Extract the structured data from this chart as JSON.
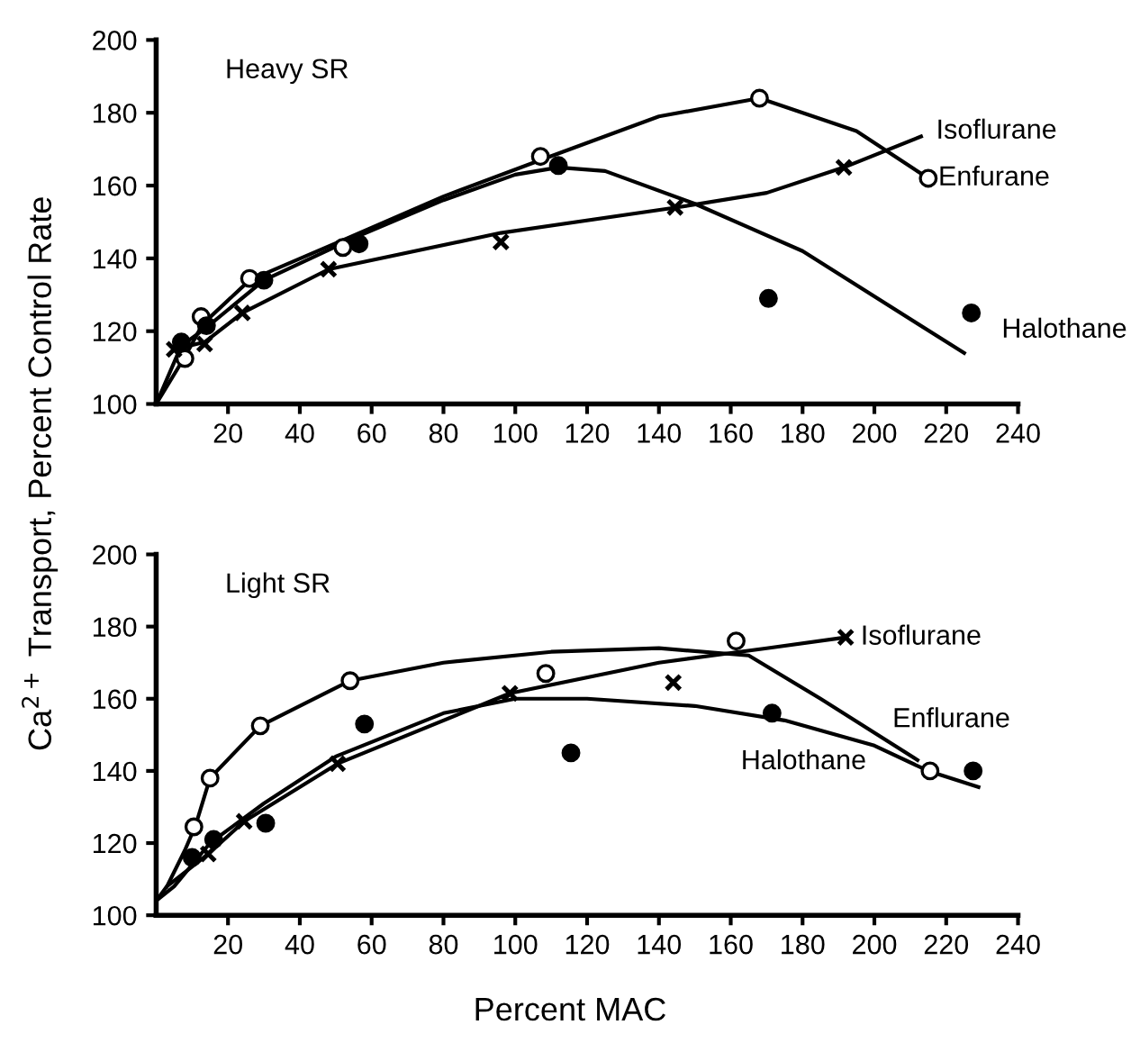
{
  "chart_data": [
    {
      "type": "scatter",
      "title": "Heavy SR",
      "ylabel": "Ca$^{2+}$ Transport, Percent Control Rate",
      "xlim": [
        0,
        240
      ],
      "ylim": [
        100,
        200
      ],
      "xticks": [
        20,
        40,
        60,
        80,
        100,
        120,
        140,
        160,
        180,
        200,
        220,
        240
      ],
      "yticks": [
        100,
        120,
        140,
        160,
        180,
        200
      ],
      "grid": false,
      "legend": false,
      "series": [
        {
          "marker": "circle",
          "color": "#ffffff",
          "x": [
            8,
            12.5,
            26,
            52,
            107,
            168,
            215
          ],
          "values": [
            112.5,
            124,
            134.5,
            143,
            168,
            184,
            162
          ]
        },
        {
          "marker": "circle",
          "color": "#000000",
          "x": [
            7,
            14,
            30,
            56.5,
            112,
            170.5,
            227
          ],
          "values": [
            117,
            121.5,
            134,
            144,
            165.5,
            129,
            125
          ]
        },
        {
          "marker": "cross",
          "color": "#000000",
          "x": [
            5,
            13.5,
            24,
            48,
            96,
            144.5,
            191.5
          ],
          "values": [
            115,
            116.5,
            125,
            137,
            144.5,
            154,
            165
          ]
        },
        {
          "type": "line",
          "name": "Enfurane",
          "color": "#000000",
          "x": [
            0,
            8,
            13,
            26,
            52,
            80,
            107,
            140,
            168,
            195,
            215
          ],
          "values": [
            100,
            113,
            122,
            134,
            145,
            157,
            167,
            179,
            184,
            175,
            162
          ]
        },
        {
          "type": "line",
          "name": "Halothane",
          "color": "#000000",
          "x": [
            0,
            7,
            14,
            30,
            56,
            80,
            100,
            112,
            125,
            150,
            180,
            225
          ],
          "values": [
            100,
            116,
            121,
            134,
            146,
            156,
            163,
            165,
            164,
            155,
            142,
            114
          ]
        },
        {
          "type": "line",
          "name": "Isoflurane",
          "color": "#000000",
          "x": [
            5,
            13.5,
            24,
            48,
            96,
            145,
            170,
            191.5,
            213
          ],
          "values": [
            115,
            117,
            125,
            137,
            147,
            154,
            158,
            165,
            173.5
          ]
        }
      ]
    },
    {
      "type": "scatter",
      "title": "Light SR",
      "xlabel": "Percent MAC",
      "xlim": [
        0,
        240
      ],
      "ylim": [
        100,
        200
      ],
      "xticks": [
        20,
        40,
        60,
        80,
        100,
        120,
        140,
        160,
        180,
        200,
        220,
        240
      ],
      "yticks": [
        100,
        120,
        140,
        160,
        180,
        200
      ],
      "grid": false,
      "legend": false,
      "series": [
        {
          "marker": "circle",
          "color": "#ffffff",
          "x": [
            10.5,
            15,
            29,
            54,
            108.5,
            161.5,
            215.5
          ],
          "values": [
            124.5,
            138,
            152.5,
            165,
            167,
            176,
            140
          ]
        },
        {
          "marker": "circle",
          "color": "#000000",
          "x": [
            10,
            16,
            30.5,
            58,
            115.5,
            171.5,
            227.5
          ],
          "values": [
            116,
            121,
            125.5,
            153,
            145,
            156,
            140
          ]
        },
        {
          "marker": "cross",
          "color": "#000000",
          "x": [
            14.5,
            24.5,
            50.5,
            98.5,
            144,
            192
          ],
          "values": [
            117,
            126,
            142,
            161.5,
            164.5,
            177
          ]
        },
        {
          "type": "line",
          "name": "Enflurane",
          "color": "#000000",
          "x": [
            3,
            8,
            11,
            15,
            29,
            54,
            80,
            110,
            140,
            165,
            185,
            212
          ],
          "values": [
            108,
            118,
            125,
            138,
            152.5,
            165,
            170,
            173,
            174,
            172,
            160,
            143
          ]
        },
        {
          "type": "line",
          "name": "Halothane",
          "color": "#000000",
          "x": [
            0,
            5,
            15,
            30,
            50,
            80,
            100,
            120,
            150,
            175,
            200,
            215,
            229
          ],
          "values": [
            104,
            108,
            120,
            131,
            144,
            156,
            160,
            160,
            158,
            154,
            147,
            140,
            135.5
          ]
        },
        {
          "type": "line",
          "name": "Isoflurane",
          "color": "#000000",
          "x": [
            0,
            3,
            14.5,
            24.5,
            50.5,
            98.5,
            140,
            170,
            192
          ],
          "values": [
            104,
            108,
            117,
            126,
            142,
            161.5,
            170,
            174,
            177
          ]
        }
      ]
    }
  ]
}
